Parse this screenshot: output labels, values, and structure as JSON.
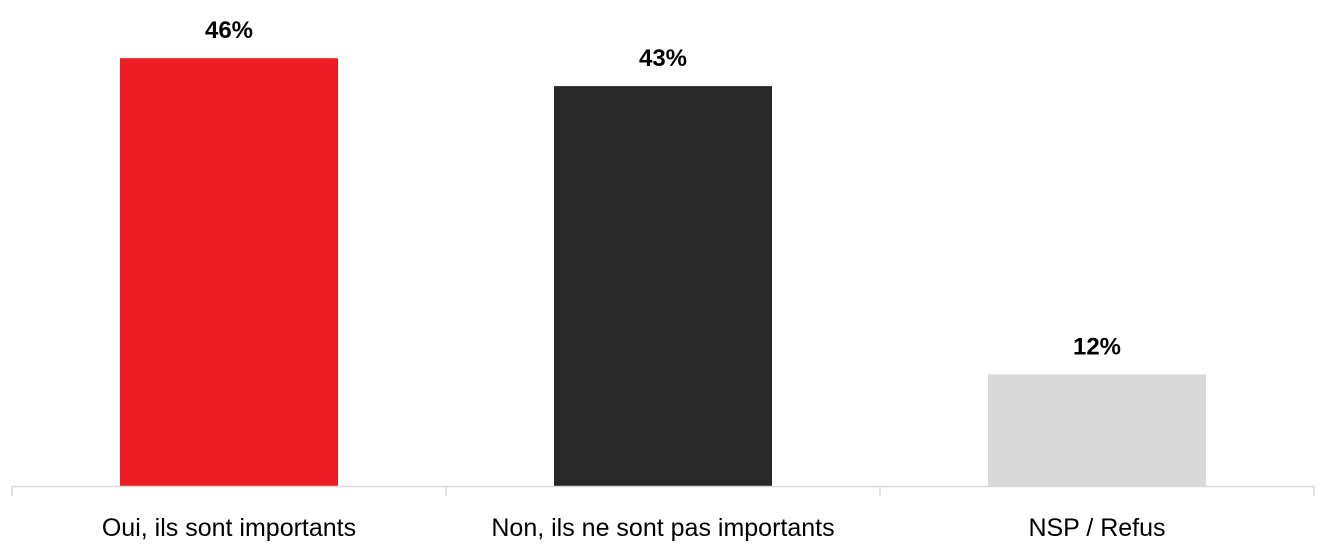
{
  "chart_data": {
    "type": "bar",
    "title": "",
    "xlabel": "",
    "ylabel": "",
    "categories": [
      "Oui, ils sont importants",
      "Non, ils ne sont pas importants",
      "NSP / Refus"
    ],
    "values": [
      46,
      43,
      12
    ],
    "value_labels": [
      "46%",
      "43%",
      "12%"
    ],
    "colors": [
      "#ed1c24",
      "#282828",
      "#d9d9d9"
    ],
    "ylim": [
      0,
      50
    ],
    "grid": false,
    "legend": "none",
    "axis_color": "#d9d9d9"
  }
}
